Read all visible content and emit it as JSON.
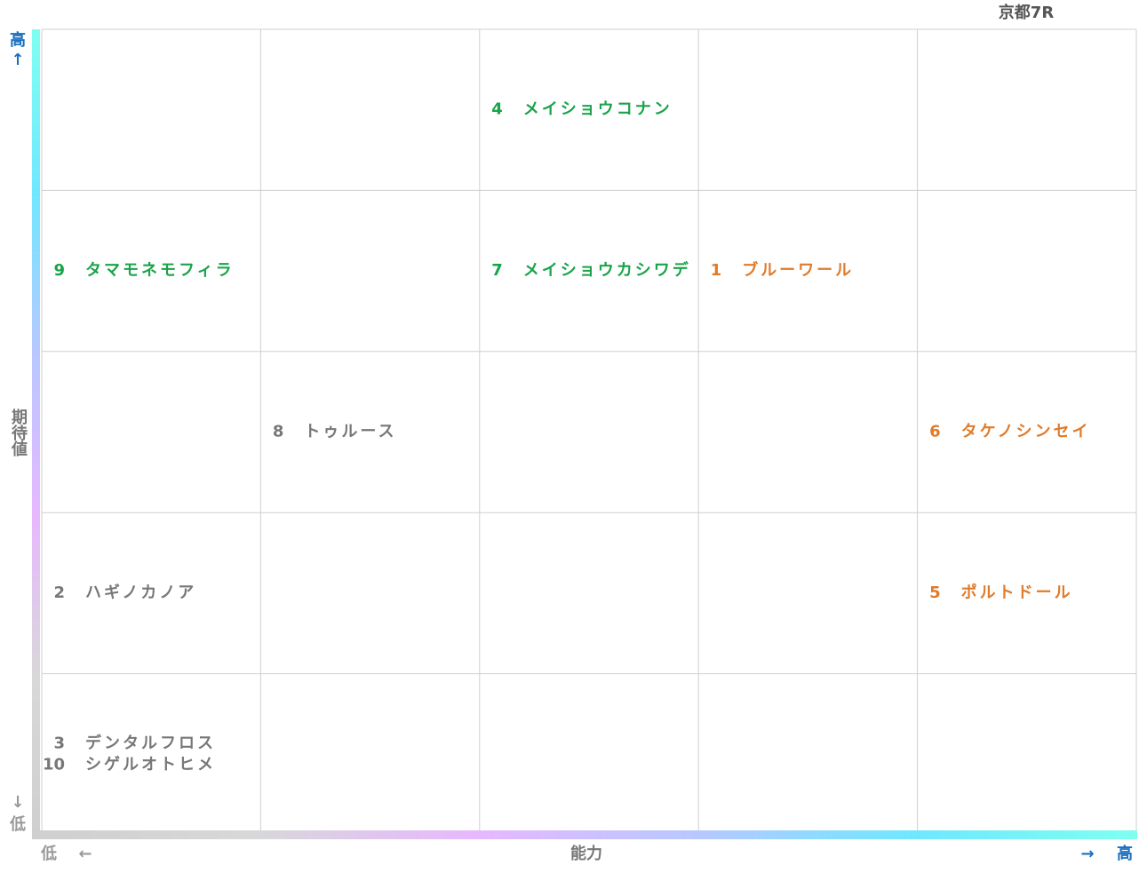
{
  "title": "京都7R",
  "axes": {
    "y": {
      "high": "高",
      "high_arrow": "↑",
      "label": "期待値",
      "low_arrow": "↓",
      "low": "低"
    },
    "x": {
      "low": "低",
      "low_arrow": "←",
      "label": "能力",
      "high_arrow": "→",
      "high": "高"
    }
  },
  "grid": {
    "rows": [
      {
        "cells": [
          {
            "entries": []
          },
          {
            "entries": []
          },
          {
            "entries": [
              {
                "number": "4",
                "name": "メイショウコナン",
                "color": "#1aa34a"
              }
            ]
          },
          {
            "entries": []
          },
          {
            "entries": []
          }
        ]
      },
      {
        "cells": [
          {
            "entries": [
              {
                "number": "9",
                "name": "タマモネモフィラ",
                "color": "#1aa34a"
              }
            ]
          },
          {
            "entries": []
          },
          {
            "entries": [
              {
                "number": "7",
                "name": "メイショウカシワデ",
                "color": "#1aa34a"
              }
            ]
          },
          {
            "entries": [
              {
                "number": "1",
                "name": "ブルーワール",
                "color": "#e07b2a"
              }
            ]
          },
          {
            "entries": []
          }
        ]
      },
      {
        "cells": [
          {
            "entries": []
          },
          {
            "entries": [
              {
                "number": "8",
                "name": "トゥルース",
                "color": "#777777"
              }
            ]
          },
          {
            "entries": []
          },
          {
            "entries": []
          },
          {
            "entries": [
              {
                "number": "6",
                "name": "タケノシンセイ",
                "color": "#e07b2a"
              }
            ]
          }
        ]
      },
      {
        "cells": [
          {
            "entries": [
              {
                "number": "2",
                "name": "ハギノカノア",
                "color": "#777777"
              }
            ]
          },
          {
            "entries": []
          },
          {
            "entries": []
          },
          {
            "entries": []
          },
          {
            "entries": [
              {
                "number": "5",
                "name": "ポルトドール",
                "color": "#e07b2a"
              }
            ]
          }
        ]
      },
      {
        "cells": [
          {
            "entries": [
              {
                "number": "3",
                "name": "デンタルフロス",
                "color": "#777777"
              },
              {
                "number": "10",
                "name": "シゲルオトヒメ",
                "color": "#777777"
              }
            ]
          },
          {
            "entries": []
          },
          {
            "entries": []
          },
          {
            "entries": []
          },
          {
            "entries": []
          }
        ]
      }
    ]
  }
}
